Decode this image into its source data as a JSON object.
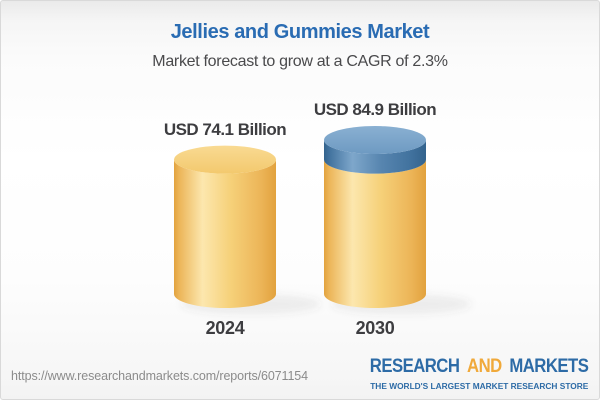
{
  "header": {
    "title": "Jellies and Gummies Market",
    "subtitle": "Market forecast to grow at a CAGR of 2.3%"
  },
  "chart_data": {
    "type": "bar",
    "variant": "3d-cylinder-infographic",
    "title": "Jellies and Gummies Market",
    "subtitle": "Market forecast to grow at a CAGR of 2.3%",
    "unit": "USD Billion",
    "cagr_percent": 2.3,
    "categories": [
      "2024",
      "2030"
    ],
    "values": [
      74.1,
      84.9
    ],
    "bars": [
      {
        "category": "2024",
        "value": 74.1,
        "label": "USD 74.1 Billion",
        "segments": [
          {
            "value": 74.1,
            "palette": "gold"
          }
        ]
      },
      {
        "category": "2030",
        "value": 84.9,
        "label": "USD 84.9 Billion",
        "segments": [
          {
            "value": 74.1,
            "palette": "gold"
          },
          {
            "value": 10.8,
            "palette": "blue"
          }
        ]
      }
    ],
    "palettes": {
      "gold": {
        "edge_dark": "#e2a23e",
        "edge": "#ecb558",
        "highlight": "#fce7ae",
        "mid": "#f6d17a",
        "top": "#f3c96e",
        "top_light": "#f9da92"
      },
      "blue": {
        "edge_dark": "#33638d",
        "edge": "#41729e",
        "highlight": "#7ea7cb",
        "mid": "#5886b0",
        "top": "#6e9ac2",
        "top_light": "#8ab0d2"
      }
    },
    "legend": "none",
    "grid": "off"
  },
  "footer": {
    "url": "https://www.researchandmarkets.com/reports/6071154",
    "logo": {
      "word1": "RESEARCH",
      "word2": "AND",
      "word3": "MARKETS",
      "tagline": "THE WORLD'S LARGEST MARKET RESEARCH STORE"
    }
  },
  "colors": {
    "title_blue": "#2a6cb3",
    "text_dark": "#3d3d40",
    "url_gray": "#8b8b8b",
    "logo_blue": "#2d6ba6",
    "logo_gold": "#f0a93a",
    "bar_gold": "#f6d17a",
    "bar_blue": "#5886b0"
  }
}
